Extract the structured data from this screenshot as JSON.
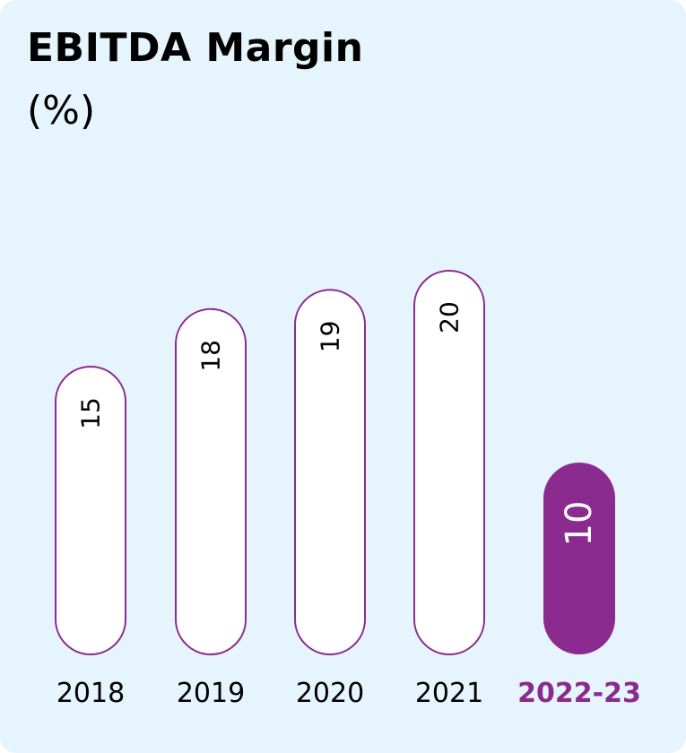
{
  "chart_data": {
    "type": "bar",
    "title": "EBITDA Margin",
    "subtitle": "(%)",
    "categories": [
      "2018",
      "2019",
      "2020",
      "2021",
      "2022-23"
    ],
    "values": [
      15,
      18,
      19,
      20,
      10
    ],
    "highlight_index": 4,
    "xlabel": "",
    "ylabel": "",
    "grid": false
  },
  "colors": {
    "background": "#e6f5fd",
    "bar_fill": "#ffffff",
    "bar_outline": "#8b2a8f",
    "highlight": "#8b2a8f",
    "text": "#000000",
    "highlight_text": "#ffffff"
  }
}
